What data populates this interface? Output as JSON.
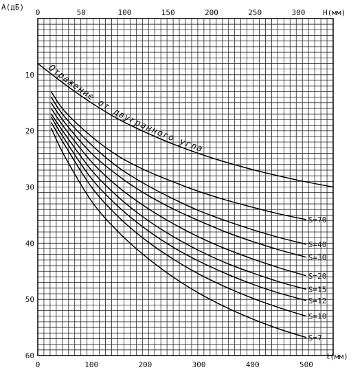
{
  "chart_data": {
    "type": "line",
    "title": "",
    "y_axis": {
      "label": "A(дБ)",
      "min": 0,
      "max": 60,
      "ticks": [
        10,
        20,
        30,
        40,
        50,
        60
      ],
      "inverted": true
    },
    "x_axis_bottom": {
      "label": "ℓ(мм)",
      "min": 0,
      "max": 550,
      "ticks": [
        0,
        100,
        200,
        300,
        400,
        500
      ]
    },
    "x_axis_top": {
      "label": "H(мм)",
      "min": 0,
      "max": 340,
      "ticks": [
        0,
        50,
        100,
        150,
        200,
        250,
        300
      ]
    },
    "grid": true,
    "series": [
      {
        "name": "S=70",
        "axis": "bottom",
        "x": [
          25,
          50,
          100,
          150,
          200,
          250,
          300,
          350,
          400,
          450,
          500
        ],
        "y": [
          13.0,
          16.5,
          21.0,
          24.5,
          27.0,
          29.0,
          30.8,
          32.3,
          33.6,
          34.8,
          35.8
        ]
      },
      {
        "name": "S=40",
        "axis": "bottom",
        "x": [
          25,
          50,
          100,
          150,
          200,
          250,
          300,
          350,
          400,
          450,
          500
        ],
        "y": [
          14.0,
          17.5,
          22.5,
          26.5,
          29.5,
          32.0,
          34.2,
          36.0,
          37.6,
          39.0,
          40.2
        ]
      },
      {
        "name": "S=30",
        "axis": "bottom",
        "x": [
          25,
          50,
          100,
          150,
          200,
          250,
          300,
          350,
          400,
          450,
          500
        ],
        "y": [
          15.0,
          18.5,
          24.0,
          28.0,
          31.2,
          33.8,
          36.0,
          38.0,
          39.7,
          41.2,
          42.5
        ]
      },
      {
        "name": "S=20",
        "axis": "bottom",
        "x": [
          25,
          50,
          100,
          150,
          200,
          250,
          300,
          350,
          400,
          450,
          500
        ],
        "y": [
          16.0,
          19.5,
          25.5,
          30.0,
          33.5,
          36.4,
          38.9,
          41.0,
          42.8,
          44.4,
          45.8
        ]
      },
      {
        "name": "S=15",
        "axis": "bottom",
        "x": [
          25,
          50,
          100,
          150,
          200,
          250,
          300,
          350,
          400,
          450,
          500
        ],
        "y": [
          17.0,
          20.5,
          27.0,
          31.8,
          35.6,
          38.7,
          41.3,
          43.5,
          45.3,
          46.9,
          48.2
        ]
      },
      {
        "name": "S=12",
        "axis": "bottom",
        "x": [
          25,
          50,
          100,
          150,
          200,
          250,
          300,
          350,
          400,
          450,
          500
        ],
        "y": [
          17.5,
          21.5,
          28.5,
          33.5,
          37.4,
          40.6,
          43.2,
          45.4,
          47.3,
          48.9,
          50.2
        ]
      },
      {
        "name": "S=10",
        "axis": "bottom",
        "x": [
          25,
          50,
          100,
          150,
          200,
          250,
          300,
          350,
          400,
          450,
          500
        ],
        "y": [
          18.5,
          22.5,
          30.0,
          35.3,
          39.4,
          42.7,
          45.5,
          47.8,
          49.8,
          51.5,
          53.0
        ]
      },
      {
        "name": "S=7",
        "axis": "bottom",
        "x": [
          25,
          50,
          100,
          150,
          200,
          250,
          300,
          350,
          400,
          450,
          500
        ],
        "y": [
          19.5,
          24.5,
          32.5,
          38.0,
          42.3,
          45.9,
          48.9,
          51.4,
          53.5,
          55.3,
          56.8
        ]
      },
      {
        "name": "Отражение от двугранного угла",
        "axis": "top",
        "x": [
          0,
          25,
          50,
          75,
          100,
          150,
          200,
          250,
          300,
          340
        ],
        "y": [
          8.0,
          11.0,
          13.8,
          16.3,
          18.5,
          22.0,
          24.8,
          27.0,
          28.8,
          30.0
        ]
      }
    ],
    "curve_labels": [
      "S=70",
      "S=40",
      "S=30",
      "S=20",
      "S=15",
      "S=12",
      "S=10",
      "S=7"
    ],
    "annotation": "Отражение от двугранного угла"
  }
}
